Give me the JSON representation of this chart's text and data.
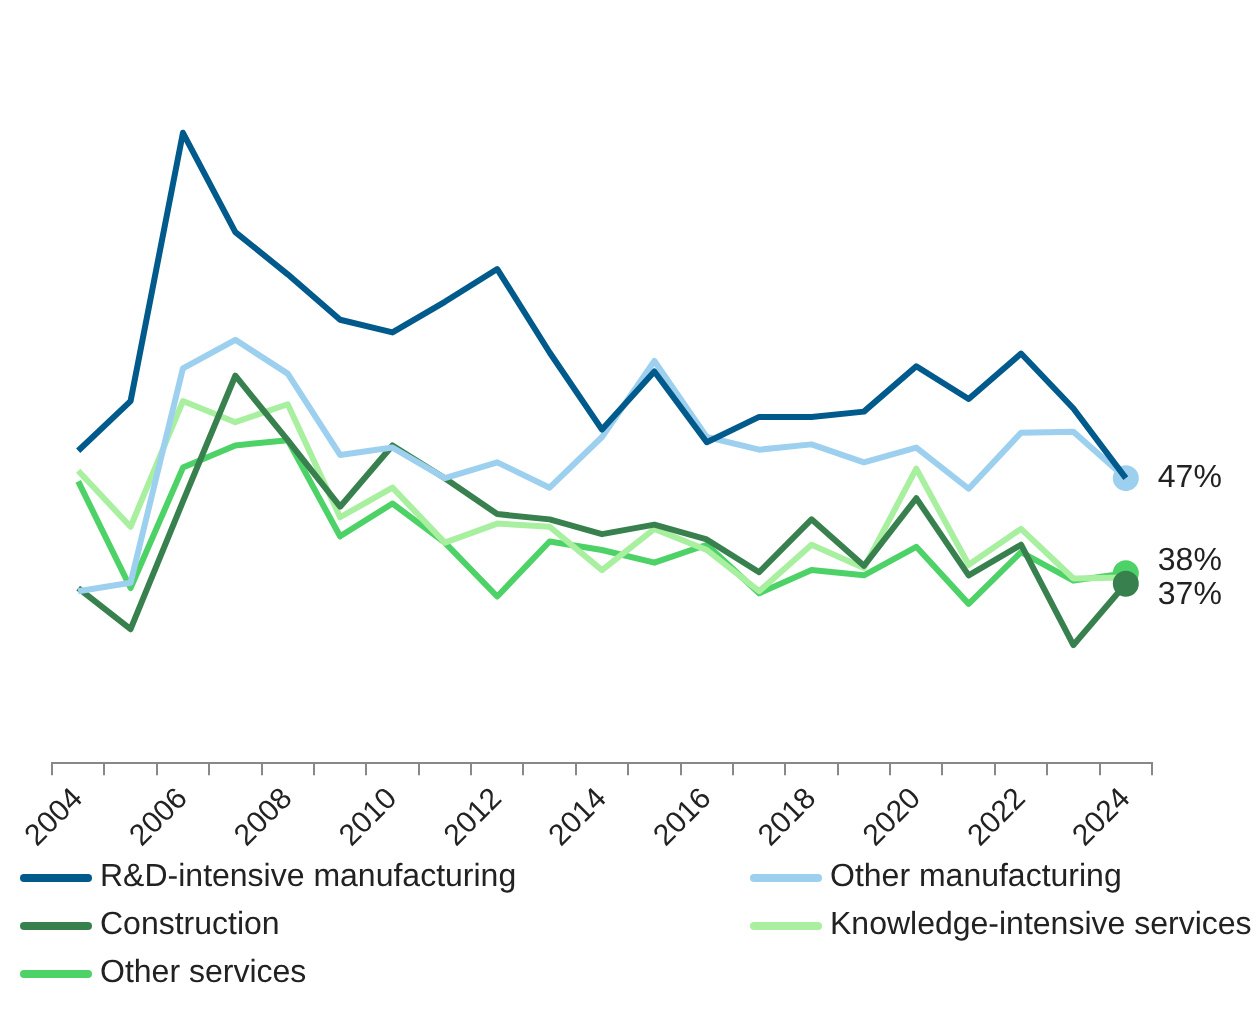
{
  "chart_data": {
    "type": "line",
    "categories": [
      "2004",
      null,
      "2006",
      null,
      "2008",
      null,
      "2010",
      null,
      "2012",
      null,
      "2014",
      null,
      "2016",
      null,
      "2018",
      null,
      "2020",
      null,
      "2022",
      null,
      "2024"
    ],
    "grid": false,
    "legend": "bottom",
    "marker": "none",
    "line_style": "solid",
    "series": [
      {
        "name": "R&D-intensive manufacturing",
        "color": "#005a8c",
        "values": [
          49.6,
          54.3,
          79.7,
          70.3,
          66.3,
          62.0,
          60.8,
          63.7,
          66.8,
          58.9,
          51.6,
          57.1,
          50.4,
          52.8,
          52.8,
          53.3,
          57.6,
          54.5,
          58.8,
          53.6,
          47
        ],
        "value_labels": [
          null,
          null,
          null,
          null,
          null,
          null,
          null,
          null,
          null,
          null,
          null,
          null,
          null,
          null,
          null,
          null,
          null,
          null,
          null,
          null,
          null
        ]
      },
      {
        "name": "Other manufacturing",
        "color": "#9dd0ef",
        "values": [
          36.3,
          37.1,
          57.4,
          60.1,
          56.9,
          49.2,
          49.9,
          47.0,
          48.5,
          46.1,
          50.9,
          58.1,
          50.9,
          49.7,
          50.2,
          48.5,
          49.9,
          46.0,
          51.3,
          51.4,
          47
        ],
        "value_labels": [
          null,
          null,
          null,
          null,
          null,
          null,
          null,
          null,
          null,
          null,
          null,
          null,
          null,
          null,
          null,
          null,
          null,
          null,
          null,
          null,
          "47%"
        ]
      },
      {
        "name": "Construction",
        "color": "#38814f",
        "values": [
          36.6,
          32.7,
          44.8,
          56.7,
          50.6,
          44.3,
          50.1,
          47.0,
          43.6,
          43.1,
          41.7,
          42.6,
          41.2,
          38.1,
          43.1,
          38.7,
          45.1,
          37.8,
          40.7,
          31.2,
          37
        ],
        "value_labels": [
          null,
          null,
          null,
          null,
          null,
          null,
          null,
          null,
          null,
          null,
          null,
          null,
          null,
          null,
          null,
          null,
          null,
          null,
          null,
          null,
          "37%"
        ]
      },
      {
        "name": "Knowledge-intensive services",
        "color": "#a8f0a0",
        "values": [
          47.7,
          42.4,
          54.3,
          52.3,
          54.0,
          43.3,
          46.1,
          40.9,
          42.7,
          42.4,
          38.3,
          42.2,
          40.2,
          36.3,
          40.7,
          38.5,
          47.9,
          38.8,
          42.2,
          37.5,
          37.6
        ],
        "value_labels": [
          null,
          null,
          null,
          null,
          null,
          null,
          null,
          null,
          null,
          null,
          null,
          null,
          null,
          null,
          null,
          null,
          null,
          null,
          null,
          null,
          null
        ]
      },
      {
        "name": "Other services",
        "color": "#4cd266",
        "values": [
          46.7,
          36.6,
          48.0,
          50.1,
          50.6,
          41.5,
          44.6,
          40.9,
          35.8,
          41.0,
          40.2,
          39.0,
          40.7,
          36.1,
          38.3,
          37.8,
          40.5,
          35.1,
          40.0,
          37.3,
          38
        ],
        "value_labels": [
          null,
          null,
          null,
          null,
          null,
          null,
          null,
          null,
          null,
          null,
          null,
          null,
          null,
          null,
          null,
          null,
          null,
          null,
          null,
          null,
          "38%"
        ]
      }
    ]
  }
}
